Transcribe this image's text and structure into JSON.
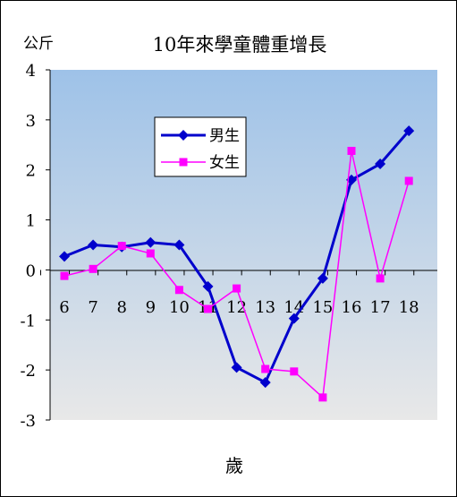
{
  "chart_data": {
    "type": "line",
    "title": "10年來學童體重增長",
    "ylabel": "公斤",
    "xlabel": "歲",
    "categories": [
      "6",
      "7",
      "8",
      "9",
      "10",
      "11",
      "12",
      "13",
      "14",
      "15",
      "16",
      "17",
      "18"
    ],
    "ylim": [
      -3,
      4
    ],
    "yticks": [
      "4",
      "3",
      "2",
      "1",
      "0",
      "-1",
      "-2",
      "-3"
    ],
    "series": [
      {
        "name": "男生",
        "color": "#0000cc",
        "marker": "diamond",
        "values": [
          0.27,
          0.5,
          0.46,
          0.55,
          0.5,
          -0.33,
          -1.95,
          -2.25,
          -0.97,
          -0.17,
          1.8,
          2.12,
          2.78
        ]
      },
      {
        "name": "女生",
        "color": "#ff00ff",
        "marker": "square",
        "values": [
          -0.12,
          0.02,
          0.48,
          0.33,
          -0.4,
          -0.78,
          -0.37,
          -1.98,
          -2.03,
          -2.55,
          2.38,
          -0.17,
          1.78
        ]
      }
    ],
    "legend_position": "upper-middle",
    "grid": false
  },
  "colors": {
    "plot_top": "#9ec2e8",
    "plot_bottom": "#e8e8e8",
    "axis": "#000000"
  }
}
